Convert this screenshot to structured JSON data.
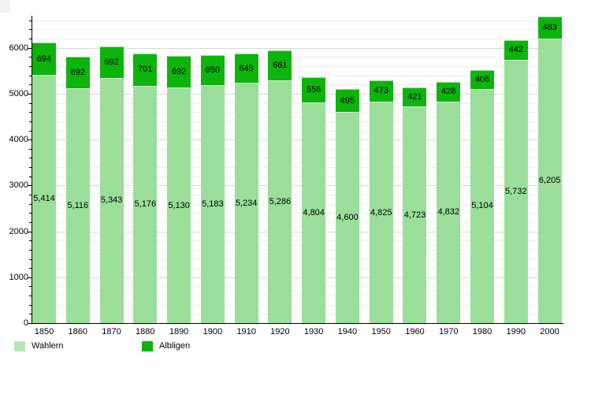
{
  "chart_data": {
    "type": "bar",
    "stacked": true,
    "title": "",
    "xlabel": "",
    "ylabel": "",
    "categories": [
      "1850",
      "1860",
      "1870",
      "1880",
      "1890",
      "1900",
      "1910",
      "1920",
      "1930",
      "1940",
      "1950",
      "1960",
      "1970",
      "1980",
      "1990",
      "2000"
    ],
    "series": [
      {
        "name": "Wahlern",
        "color": "#9ade9a",
        "legend_color": "#b7e7b7",
        "values": [
          5414,
          5116,
          5343,
          5176,
          5130,
          5183,
          5234,
          5286,
          4804,
          4600,
          4825,
          4723,
          4832,
          5104,
          5732,
          6205
        ],
        "labels": [
          "5,414",
          "5,116",
          "5,343",
          "5,176",
          "5,130",
          "5,183",
          "5,234",
          "5,286",
          "4,804",
          "4,600",
          "4,825",
          "4,723",
          "4,832",
          "5,104",
          "5,732",
          "6,205"
        ]
      },
      {
        "name": "Albligen",
        "color": "#0cb40c",
        "legend_color": "#0cb40c",
        "values": [
          694,
          692,
          692,
          701,
          692,
          650,
          645,
          661,
          556,
          495,
          473,
          421,
          428,
          406,
          442,
          483
        ],
        "labels": [
          "694",
          "692",
          "692",
          "701",
          "692",
          "650",
          "645",
          "661",
          "556",
          "495",
          "473",
          "421",
          "428",
          "406",
          "442",
          "483"
        ]
      }
    ],
    "ylim": [
      0,
      6700
    ],
    "yticks": [
      0,
      1000,
      2000,
      3000,
      4000,
      5000,
      6000
    ],
    "ytick_labels": [
      "0",
      "1000",
      "2000",
      "3000",
      "4000",
      "5000",
      "6000"
    ],
    "minor_tick_step": 200,
    "grid": true,
    "legend_position": "bottom-left"
  }
}
